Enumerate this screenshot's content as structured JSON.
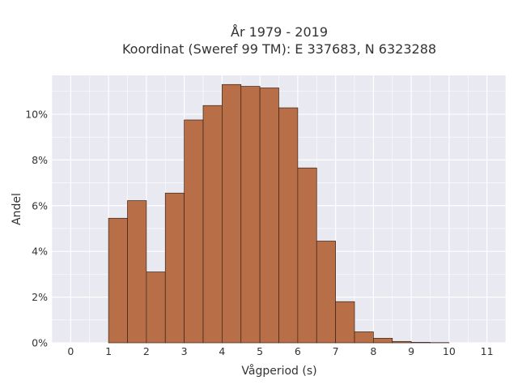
{
  "chart_data": {
    "type": "bar",
    "title_line1": "År 1979 - 2019",
    "title_line2": "Koordinat (Sweref 99 TM): E 337683, N 6323288",
    "xlabel": "Vågperiod (s)",
    "ylabel": "Andel",
    "xlim": [
      -0.5,
      11.5
    ],
    "ylim": [
      0,
      11.7
    ],
    "x_ticks": [
      "0",
      "1",
      "2",
      "3",
      "4",
      "5",
      "6",
      "7",
      "8",
      "9",
      "10",
      "11"
    ],
    "y_ticks": [
      "0%",
      "2%",
      "4%",
      "6%",
      "8%",
      "10%"
    ],
    "bin_width": 0.5,
    "bins": [
      {
        "x0": 1.0,
        "value": 5.45
      },
      {
        "x0": 1.5,
        "value": 6.22
      },
      {
        "x0": 2.0,
        "value": 3.1
      },
      {
        "x0": 2.5,
        "value": 6.55
      },
      {
        "x0": 3.0,
        "value": 9.75
      },
      {
        "x0": 3.5,
        "value": 10.38
      },
      {
        "x0": 4.0,
        "value": 11.3
      },
      {
        "x0": 4.5,
        "value": 11.22
      },
      {
        "x0": 5.0,
        "value": 11.15
      },
      {
        "x0": 5.5,
        "value": 10.28
      },
      {
        "x0": 6.0,
        "value": 7.65
      },
      {
        "x0": 6.5,
        "value": 4.45
      },
      {
        "x0": 7.0,
        "value": 1.8
      },
      {
        "x0": 7.5,
        "value": 0.48
      },
      {
        "x0": 8.0,
        "value": 0.2
      },
      {
        "x0": 8.5,
        "value": 0.06
      },
      {
        "x0": 9.0,
        "value": 0.02
      },
      {
        "x0": 9.5,
        "value": 0.01
      }
    ],
    "grid": true,
    "colors": {
      "bar_fill": "#b86f47",
      "bar_stroke": "#3a2318",
      "plot_bg": "#e9e9f1",
      "grid": "#ffffff"
    }
  }
}
